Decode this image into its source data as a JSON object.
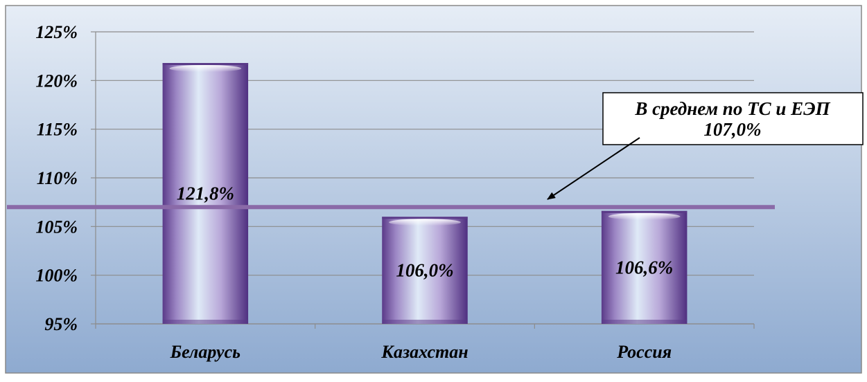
{
  "chart_data": {
    "type": "bar",
    "categories": [
      "Беларусь",
      "Казахстан",
      "Россия"
    ],
    "values": [
      121.8,
      106.0,
      106.6
    ],
    "data_labels": [
      "121,8%",
      "106,0%",
      "106,6%"
    ],
    "ylim": [
      95,
      125
    ],
    "yticks": [
      95,
      100,
      105,
      110,
      115,
      120,
      125
    ],
    "ytick_labels": [
      "95%",
      "100%",
      "105%",
      "110%",
      "115%",
      "120%",
      "125%"
    ],
    "reference_line": {
      "value": 107.0,
      "label_line1": "В среднем по ТС и ЕЭП",
      "label_line2": "107,0%"
    },
    "grid": true,
    "legend": "none",
    "colors": {
      "bar_dark": "#5a3a88",
      "bar_light": "#dfeaf7",
      "reference_line": "#8a6aa8",
      "background_top": "#e6edf6",
      "background_bottom": "#8eaad0",
      "gridline": "#8c8c8c"
    }
  }
}
